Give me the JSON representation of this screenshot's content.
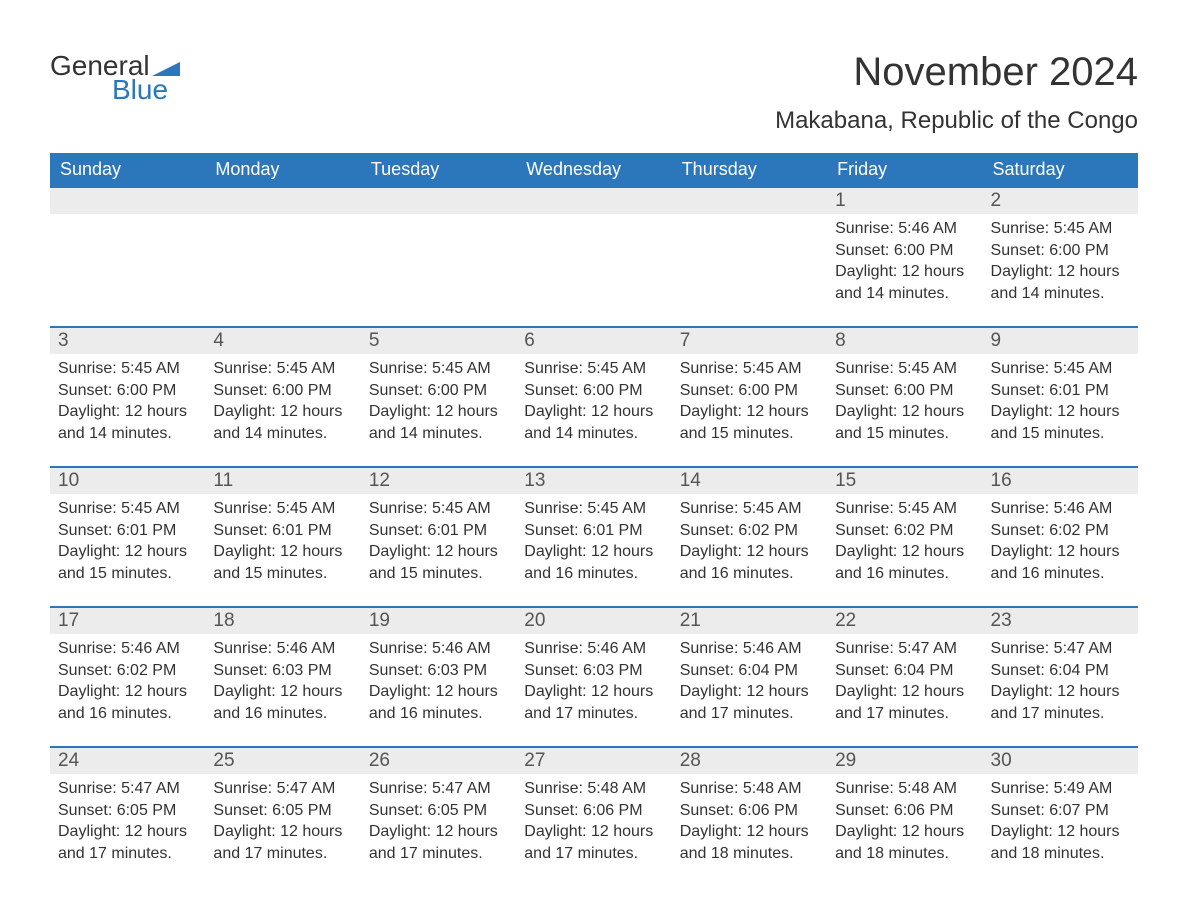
{
  "brand": {
    "general": "General",
    "blue": "Blue",
    "flag_color": "#2c77bb"
  },
  "title": "November 2024",
  "location": "Makabana, Republic of the Congo",
  "colors": {
    "header_bg": "#2c77bb",
    "header_text": "#ffffff",
    "daynum_bg": "#ececec",
    "daynum_border": "#2c77bb",
    "body_bg": "#ffffff",
    "text": "#333333"
  },
  "fonts": {
    "title_size": 40,
    "location_size": 24,
    "dayheader_size": 18,
    "daynum_size": 19,
    "body_size": 16
  },
  "day_headers": [
    "Sunday",
    "Monday",
    "Tuesday",
    "Wednesday",
    "Thursday",
    "Friday",
    "Saturday"
  ],
  "weeks": [
    [
      {
        "empty": true
      },
      {
        "empty": true
      },
      {
        "empty": true
      },
      {
        "empty": true
      },
      {
        "empty": true
      },
      {
        "num": "1",
        "sunrise": "Sunrise: 5:46 AM",
        "sunset": "Sunset: 6:00 PM",
        "daylight": "Daylight: 12 hours and 14 minutes."
      },
      {
        "num": "2",
        "sunrise": "Sunrise: 5:45 AM",
        "sunset": "Sunset: 6:00 PM",
        "daylight": "Daylight: 12 hours and 14 minutes."
      }
    ],
    [
      {
        "num": "3",
        "sunrise": "Sunrise: 5:45 AM",
        "sunset": "Sunset: 6:00 PM",
        "daylight": "Daylight: 12 hours and 14 minutes."
      },
      {
        "num": "4",
        "sunrise": "Sunrise: 5:45 AM",
        "sunset": "Sunset: 6:00 PM",
        "daylight": "Daylight: 12 hours and 14 minutes."
      },
      {
        "num": "5",
        "sunrise": "Sunrise: 5:45 AM",
        "sunset": "Sunset: 6:00 PM",
        "daylight": "Daylight: 12 hours and 14 minutes."
      },
      {
        "num": "6",
        "sunrise": "Sunrise: 5:45 AM",
        "sunset": "Sunset: 6:00 PM",
        "daylight": "Daylight: 12 hours and 14 minutes."
      },
      {
        "num": "7",
        "sunrise": "Sunrise: 5:45 AM",
        "sunset": "Sunset: 6:00 PM",
        "daylight": "Daylight: 12 hours and 15 minutes."
      },
      {
        "num": "8",
        "sunrise": "Sunrise: 5:45 AM",
        "sunset": "Sunset: 6:00 PM",
        "daylight": "Daylight: 12 hours and 15 minutes."
      },
      {
        "num": "9",
        "sunrise": "Sunrise: 5:45 AM",
        "sunset": "Sunset: 6:01 PM",
        "daylight": "Daylight: 12 hours and 15 minutes."
      }
    ],
    [
      {
        "num": "10",
        "sunrise": "Sunrise: 5:45 AM",
        "sunset": "Sunset: 6:01 PM",
        "daylight": "Daylight: 12 hours and 15 minutes."
      },
      {
        "num": "11",
        "sunrise": "Sunrise: 5:45 AM",
        "sunset": "Sunset: 6:01 PM",
        "daylight": "Daylight: 12 hours and 15 minutes."
      },
      {
        "num": "12",
        "sunrise": "Sunrise: 5:45 AM",
        "sunset": "Sunset: 6:01 PM",
        "daylight": "Daylight: 12 hours and 15 minutes."
      },
      {
        "num": "13",
        "sunrise": "Sunrise: 5:45 AM",
        "sunset": "Sunset: 6:01 PM",
        "daylight": "Daylight: 12 hours and 16 minutes."
      },
      {
        "num": "14",
        "sunrise": "Sunrise: 5:45 AM",
        "sunset": "Sunset: 6:02 PM",
        "daylight": "Daylight: 12 hours and 16 minutes."
      },
      {
        "num": "15",
        "sunrise": "Sunrise: 5:45 AM",
        "sunset": "Sunset: 6:02 PM",
        "daylight": "Daylight: 12 hours and 16 minutes."
      },
      {
        "num": "16",
        "sunrise": "Sunrise: 5:46 AM",
        "sunset": "Sunset: 6:02 PM",
        "daylight": "Daylight: 12 hours and 16 minutes."
      }
    ],
    [
      {
        "num": "17",
        "sunrise": "Sunrise: 5:46 AM",
        "sunset": "Sunset: 6:02 PM",
        "daylight": "Daylight: 12 hours and 16 minutes."
      },
      {
        "num": "18",
        "sunrise": "Sunrise: 5:46 AM",
        "sunset": "Sunset: 6:03 PM",
        "daylight": "Daylight: 12 hours and 16 minutes."
      },
      {
        "num": "19",
        "sunrise": "Sunrise: 5:46 AM",
        "sunset": "Sunset: 6:03 PM",
        "daylight": "Daylight: 12 hours and 16 minutes."
      },
      {
        "num": "20",
        "sunrise": "Sunrise: 5:46 AM",
        "sunset": "Sunset: 6:03 PM",
        "daylight": "Daylight: 12 hours and 17 minutes."
      },
      {
        "num": "21",
        "sunrise": "Sunrise: 5:46 AM",
        "sunset": "Sunset: 6:04 PM",
        "daylight": "Daylight: 12 hours and 17 minutes."
      },
      {
        "num": "22",
        "sunrise": "Sunrise: 5:47 AM",
        "sunset": "Sunset: 6:04 PM",
        "daylight": "Daylight: 12 hours and 17 minutes."
      },
      {
        "num": "23",
        "sunrise": "Sunrise: 5:47 AM",
        "sunset": "Sunset: 6:04 PM",
        "daylight": "Daylight: 12 hours and 17 minutes."
      }
    ],
    [
      {
        "num": "24",
        "sunrise": "Sunrise: 5:47 AM",
        "sunset": "Sunset: 6:05 PM",
        "daylight": "Daylight: 12 hours and 17 minutes."
      },
      {
        "num": "25",
        "sunrise": "Sunrise: 5:47 AM",
        "sunset": "Sunset: 6:05 PM",
        "daylight": "Daylight: 12 hours and 17 minutes."
      },
      {
        "num": "26",
        "sunrise": "Sunrise: 5:47 AM",
        "sunset": "Sunset: 6:05 PM",
        "daylight": "Daylight: 12 hours and 17 minutes."
      },
      {
        "num": "27",
        "sunrise": "Sunrise: 5:48 AM",
        "sunset": "Sunset: 6:06 PM",
        "daylight": "Daylight: 12 hours and 17 minutes."
      },
      {
        "num": "28",
        "sunrise": "Sunrise: 5:48 AM",
        "sunset": "Sunset: 6:06 PM",
        "daylight": "Daylight: 12 hours and 18 minutes."
      },
      {
        "num": "29",
        "sunrise": "Sunrise: 5:48 AM",
        "sunset": "Sunset: 6:06 PM",
        "daylight": "Daylight: 12 hours and 18 minutes."
      },
      {
        "num": "30",
        "sunrise": "Sunrise: 5:49 AM",
        "sunset": "Sunset: 6:07 PM",
        "daylight": "Daylight: 12 hours and 18 minutes."
      }
    ]
  ]
}
